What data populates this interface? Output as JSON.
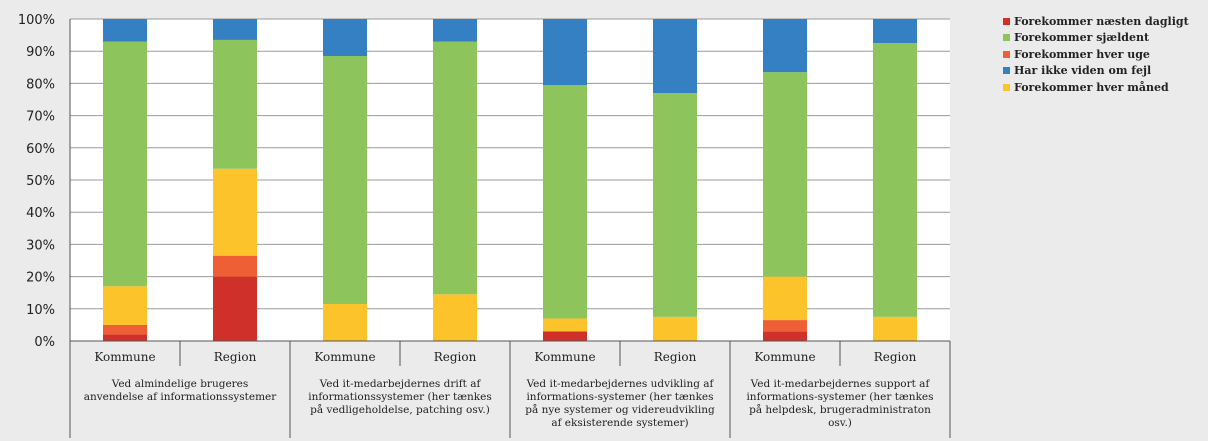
{
  "chart_data": {
    "type": "stacked-bar-100",
    "ylim": [
      0,
      100
    ],
    "yticks": [
      "0%",
      "10%",
      "20%",
      "30%",
      "40%",
      "50%",
      "60%",
      "70%",
      "80%",
      "90%",
      "100%"
    ],
    "grid": true,
    "legend_position": "right",
    "groups": [
      {
        "label": "Ved almindelige brugeres anvendelse af informationssystemer",
        "categories": [
          "Kommune",
          "Region"
        ]
      },
      {
        "label": "Ved it-medarbejdernes drift af informationssystemer (her tænkes på vedligeholdelse, patching osv.)",
        "categories": [
          "Kommune",
          "Region"
        ]
      },
      {
        "label": "Ved it-medarbejdernes udvikling af informations-systemer (her tænkes på nye systemer og videreudvikling af eksisterende systemer)",
        "categories": [
          "Kommune",
          "Region"
        ]
      },
      {
        "label": "Ved it-medarbejdernes support af informations-systemer (her tænkes på helpdesk, brugeradministraton osv.)",
        "categories": [
          "Kommune",
          "Region"
        ]
      }
    ],
    "stack_order": [
      "Forekommer næsten dagligt",
      "Forekommer hver uge",
      "Forekommer hver måned",
      "Forekommer sjældent",
      "Har ikke viden om fejl"
    ],
    "series": [
      {
        "name": "Forekommer næsten dagligt",
        "color": "#d0302a",
        "values": [
          2,
          20,
          0,
          0,
          3,
          0,
          3,
          0
        ]
      },
      {
        "name": "Forekommer sjældent",
        "color": "#8dc45b",
        "values": [
          76,
          40,
          77,
          78.5,
          72.5,
          69.5,
          63.5,
          85
        ]
      },
      {
        "name": "Forekommer hver uge",
        "color": "#ee5f35",
        "values": [
          3,
          6.5,
          0,
          0,
          0,
          0,
          3.5,
          0
        ]
      },
      {
        "name": "Har ikke viden om fejl",
        "color": "#3580c2",
        "values": [
          7,
          6.5,
          11.5,
          7,
          20.5,
          23,
          16.5,
          7.5
        ]
      },
      {
        "name": "Forekommer hver måned",
        "color": "#fcc42a",
        "values": [
          12,
          27,
          11.5,
          14.5,
          4,
          7.5,
          13.5,
          7.5
        ]
      }
    ]
  }
}
